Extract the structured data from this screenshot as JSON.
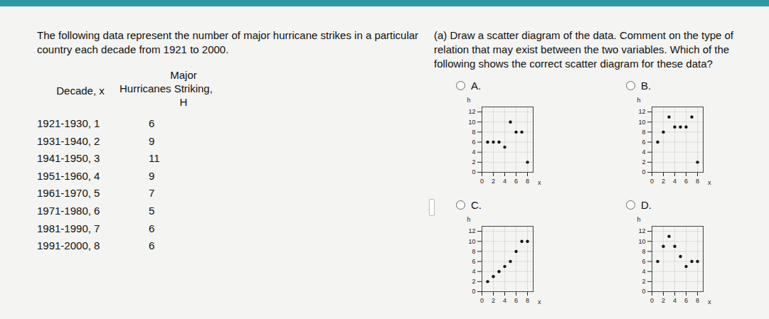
{
  "problem": "The following data represent the number of major hurricane strikes in a particular country each decade from 1921 to 2000.",
  "table": {
    "headers": [
      "Decade, x",
      "Major Hurricanes Striking, H"
    ],
    "rows": [
      [
        "1921-1930, 1",
        6
      ],
      [
        "1931-1940, 2",
        9
      ],
      [
        "1941-1950, 3",
        11
      ],
      [
        "1951-1960, 4",
        9
      ],
      [
        "1961-1970, 5",
        7
      ],
      [
        "1971-1980, 6",
        5
      ],
      [
        "1981-1990, 7",
        6
      ],
      [
        "1991-2000, 8",
        6
      ]
    ]
  },
  "question": "(a) Draw a scatter diagram of the data. Comment on the type of relation that may exist between the two variables. Which of the following shows the correct scatter diagram for these data?",
  "chart_data": [
    {
      "type": "scatter",
      "title": "A.",
      "x": [
        1,
        2,
        3,
        4,
        5,
        6,
        7,
        8
      ],
      "values": [
        6,
        6,
        6,
        5,
        10,
        8,
        8,
        2
      ],
      "x_label": "x",
      "y_label": "h",
      "xlim": [
        0,
        9
      ],
      "ylim": [
        0,
        13
      ],
      "xticks": [
        0,
        2,
        4,
        6,
        8
      ],
      "yticks": [
        0,
        2,
        4,
        6,
        8,
        10,
        12
      ],
      "grid": true,
      "color": "#111111"
    },
    {
      "type": "scatter",
      "title": "B.",
      "x": [
        1,
        2,
        3,
        4,
        5,
        6,
        7,
        8
      ],
      "values": [
        6,
        8,
        11,
        9,
        9,
        9,
        11,
        2
      ],
      "x_label": "x",
      "y_label": "h",
      "xlim": [
        0,
        9
      ],
      "ylim": [
        0,
        13
      ],
      "xticks": [
        0,
        2,
        4,
        6,
        8
      ],
      "yticks": [
        0,
        2,
        4,
        6,
        8,
        10,
        12
      ],
      "grid": true,
      "color": "#111111"
    },
    {
      "type": "scatter",
      "title": "C.",
      "x": [
        1,
        2,
        3,
        4,
        5,
        6,
        7,
        8
      ],
      "values": [
        2,
        3,
        4,
        5,
        6,
        8,
        10,
        10
      ],
      "x_label": "x",
      "y_label": "h",
      "xlim": [
        0,
        9
      ],
      "ylim": [
        0,
        13
      ],
      "xticks": [
        0,
        2,
        4,
        6,
        8
      ],
      "yticks": [
        0,
        2,
        4,
        6,
        8,
        10,
        12
      ],
      "grid": true,
      "color": "#111111"
    },
    {
      "type": "scatter",
      "title": "D.",
      "x": [
        1,
        2,
        3,
        4,
        5,
        6,
        7,
        8
      ],
      "values": [
        6,
        9,
        11,
        9,
        7,
        5,
        6,
        6
      ],
      "x_label": "x",
      "y_label": "h",
      "xlim": [
        0,
        9
      ],
      "ylim": [
        0,
        13
      ],
      "xticks": [
        0,
        2,
        4,
        6,
        8
      ],
      "yticks": [
        0,
        2,
        4,
        6,
        8,
        10,
        12
      ],
      "grid": true,
      "color": "#111111"
    }
  ]
}
